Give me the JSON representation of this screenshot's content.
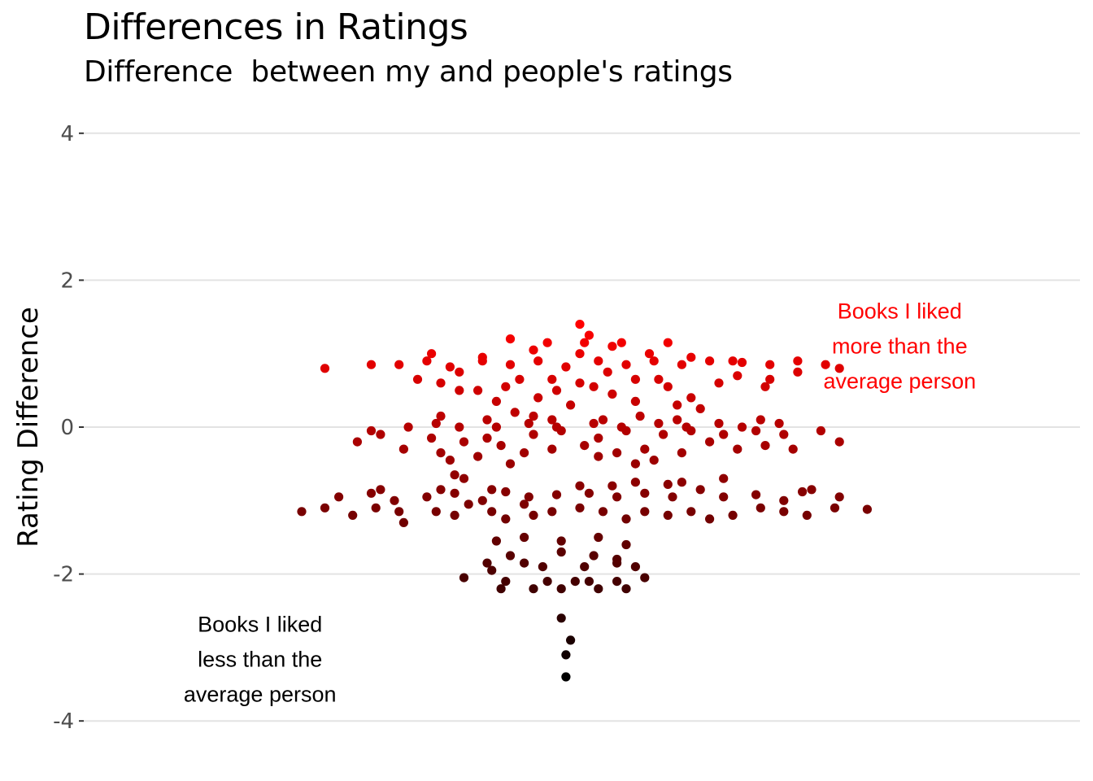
{
  "chart_data": {
    "type": "scatter",
    "title": "Differences in Ratings",
    "subtitle": "Difference  between my and people's ratings",
    "xlabel": "",
    "ylabel": "Rating Difference",
    "ylim": [
      -4.2,
      4.2
    ],
    "yticks": [
      -4,
      -2,
      0,
      2,
      4
    ],
    "ytick_labels": [
      "-4",
      "-2",
      "0",
      "2",
      "4"
    ],
    "xlim": [
      -1,
      1
    ],
    "grid": "horizontal",
    "legend": "none",
    "color_low": "#000000",
    "color_high": "#ff0000",
    "annotations": [
      {
        "lines": [
          "Books I liked",
          "more than the",
          "average person"
        ],
        "x": 0.69,
        "y": 1.1,
        "color": "#ff0000"
      },
      {
        "lines": [
          "Books I liked",
          "less than the",
          "average person"
        ],
        "x": -0.69,
        "y": -3.16,
        "color": "#000000"
      }
    ],
    "points": [
      [
        -0.03,
        -3.4
      ],
      [
        -0.03,
        -3.1
      ],
      [
        -0.02,
        -2.9
      ],
      [
        -0.04,
        -2.6
      ],
      [
        -0.17,
        -2.2
      ],
      [
        -0.1,
        -2.2
      ],
      [
        -0.04,
        -2.2
      ],
      [
        0.04,
        -2.2
      ],
      [
        0.1,
        -2.2
      ],
      [
        -0.16,
        -2.1
      ],
      [
        -0.01,
        -2.1
      ],
      [
        -0.25,
        -2.05
      ],
      [
        -0.07,
        -2.1
      ],
      [
        0.02,
        -2.1
      ],
      [
        0.08,
        -2.1
      ],
      [
        0.14,
        -2.05
      ],
      [
        -0.19,
        -1.95
      ],
      [
        -0.08,
        -1.9
      ],
      [
        0.01,
        -1.9
      ],
      [
        0.08,
        -1.85
      ],
      [
        0.12,
        -1.9
      ],
      [
        -0.12,
        -1.85
      ],
      [
        -0.2,
        -1.85
      ],
      [
        -0.04,
        -1.7
      ],
      [
        0.03,
        -1.75
      ],
      [
        0.08,
        -1.8
      ],
      [
        -0.15,
        -1.75
      ],
      [
        -0.18,
        -1.55
      ],
      [
        -0.12,
        -1.5
      ],
      [
        -0.04,
        -1.55
      ],
      [
        0.04,
        -1.5
      ],
      [
        0.1,
        -1.6
      ],
      [
        -0.39,
        -1.15
      ],
      [
        -0.38,
        -1.3
      ],
      [
        -0.31,
        -1.15
      ],
      [
        -0.27,
        -1.2
      ],
      [
        -0.24,
        -1.05
      ],
      [
        -0.19,
        -1.15
      ],
      [
        -0.16,
        -1.25
      ],
      [
        -0.12,
        -1.05
      ],
      [
        -0.1,
        -1.2
      ],
      [
        -0.06,
        -1.15
      ],
      [
        0.0,
        -1.1
      ],
      [
        0.05,
        -1.15
      ],
      [
        0.1,
        -1.25
      ],
      [
        0.14,
        -1.15
      ],
      [
        0.19,
        -1.2
      ],
      [
        0.24,
        -1.15
      ],
      [
        0.28,
        -1.25
      ],
      [
        0.33,
        -1.2
      ],
      [
        0.39,
        -1.1
      ],
      [
        0.44,
        -1.15
      ],
      [
        0.49,
        -1.2
      ],
      [
        0.55,
        -1.1
      ],
      [
        -0.55,
        -1.1
      ],
      [
        -0.49,
        -1.2
      ],
      [
        -0.44,
        -1.1
      ],
      [
        -0.6,
        -1.15
      ],
      [
        0.62,
        -1.12
      ],
      [
        -0.52,
        -0.95
      ],
      [
        -0.45,
        -0.9
      ],
      [
        -0.4,
        -1.0
      ],
      [
        -0.33,
        -0.95
      ],
      [
        -0.27,
        -0.9
      ],
      [
        -0.21,
        -1.0
      ],
      [
        -0.16,
        -0.88
      ],
      [
        -0.11,
        -0.95
      ],
      [
        -0.05,
        -0.92
      ],
      [
        0.02,
        -0.9
      ],
      [
        0.08,
        -0.95
      ],
      [
        0.14,
        -0.9
      ],
      [
        0.2,
        -0.95
      ],
      [
        0.26,
        -0.85
      ],
      [
        0.31,
        -0.95
      ],
      [
        0.38,
        -0.92
      ],
      [
        0.44,
        -1.0
      ],
      [
        0.5,
        -0.85
      ],
      [
        0.56,
        -0.95
      ],
      [
        0.48,
        -0.88
      ],
      [
        -0.43,
        -0.85
      ],
      [
        -0.3,
        -0.85
      ],
      [
        -0.25,
        -0.7
      ],
      [
        -0.19,
        -0.85
      ],
      [
        0.0,
        -0.8
      ],
      [
        0.07,
        -0.8
      ],
      [
        0.12,
        -0.75
      ],
      [
        0.19,
        -0.78
      ],
      [
        0.31,
        -0.7
      ],
      [
        0.22,
        -0.75
      ],
      [
        -0.27,
        -0.65
      ],
      [
        -0.48,
        -0.2
      ],
      [
        -0.43,
        -0.1
      ],
      [
        -0.38,
        -0.3
      ],
      [
        -0.3,
        -0.35
      ],
      [
        -0.22,
        -0.4
      ],
      [
        -0.17,
        -0.25
      ],
      [
        -0.12,
        -0.35
      ],
      [
        -0.06,
        -0.3
      ],
      [
        0.01,
        -0.25
      ],
      [
        0.08,
        -0.35
      ],
      [
        0.14,
        -0.3
      ],
      [
        0.22,
        -0.35
      ],
      [
        0.28,
        -0.2
      ],
      [
        0.34,
        -0.3
      ],
      [
        0.4,
        -0.25
      ],
      [
        0.46,
        -0.3
      ],
      [
        -0.45,
        -0.05
      ],
      [
        -0.32,
        -0.15
      ],
      [
        -0.25,
        -0.2
      ],
      [
        -0.2,
        -0.15
      ],
      [
        -0.1,
        -0.1
      ],
      [
        -0.04,
        -0.05
      ],
      [
        0.04,
        -0.15
      ],
      [
        0.1,
        -0.05
      ],
      [
        0.18,
        -0.1
      ],
      [
        0.24,
        -0.05
      ],
      [
        0.31,
        -0.1
      ],
      [
        0.38,
        -0.05
      ],
      [
        0.44,
        -0.1
      ],
      [
        0.52,
        -0.05
      ],
      [
        0.56,
        -0.2
      ],
      [
        -0.28,
        -0.45
      ],
      [
        0.04,
        -0.4
      ],
      [
        0.16,
        -0.45
      ],
      [
        -0.15,
        -0.5
      ],
      [
        0.12,
        -0.5
      ],
      [
        -0.37,
        0.0
      ],
      [
        -0.31,
        0.05
      ],
      [
        -0.26,
        0.0
      ],
      [
        -0.18,
        0.0
      ],
      [
        -0.11,
        0.05
      ],
      [
        -0.05,
        0.0
      ],
      [
        0.03,
        0.05
      ],
      [
        0.09,
        0.0
      ],
      [
        0.17,
        0.05
      ],
      [
        0.23,
        0.0
      ],
      [
        0.3,
        0.05
      ],
      [
        0.35,
        0.0
      ],
      [
        0.43,
        0.05
      ],
      [
        -0.3,
        0.15
      ],
      [
        -0.2,
        0.1
      ],
      [
        -0.14,
        0.2
      ],
      [
        -0.06,
        0.1
      ],
      [
        0.05,
        0.1
      ],
      [
        0.13,
        0.15
      ],
      [
        0.21,
        0.1
      ],
      [
        0.26,
        0.25
      ],
      [
        0.39,
        0.1
      ],
      [
        -0.18,
        0.35
      ],
      [
        -0.1,
        0.15
      ],
      [
        -0.35,
        0.65
      ],
      [
        -0.3,
        0.6
      ],
      [
        -0.26,
        0.75
      ],
      [
        -0.22,
        0.5
      ],
      [
        -0.16,
        0.55
      ],
      [
        -0.13,
        0.65
      ],
      [
        -0.06,
        0.65
      ],
      [
        0.0,
        0.6
      ],
      [
        0.06,
        0.75
      ],
      [
        0.12,
        0.65
      ],
      [
        0.19,
        0.55
      ],
      [
        0.24,
        0.4
      ],
      [
        0.3,
        0.6
      ],
      [
        0.34,
        0.7
      ],
      [
        0.41,
        0.65
      ],
      [
        0.47,
        0.75
      ],
      [
        -0.45,
        0.85
      ],
      [
        -0.39,
        0.85
      ],
      [
        -0.33,
        0.9
      ],
      [
        -0.28,
        0.82
      ],
      [
        -0.21,
        0.9
      ],
      [
        -0.15,
        0.85
      ],
      [
        -0.09,
        0.9
      ],
      [
        -0.03,
        0.82
      ],
      [
        0.04,
        0.9
      ],
      [
        0.1,
        0.85
      ],
      [
        0.16,
        0.9
      ],
      [
        0.22,
        0.85
      ],
      [
        0.28,
        0.9
      ],
      [
        0.35,
        0.88
      ],
      [
        0.41,
        0.85
      ],
      [
        0.47,
        0.9
      ],
      [
        0.53,
        0.85
      ],
      [
        -0.55,
        0.8
      ],
      [
        0.56,
        0.8
      ],
      [
        -0.32,
        1.0
      ],
      [
        -0.21,
        0.95
      ],
      [
        -0.1,
        1.05
      ],
      [
        0.0,
        1.0
      ],
      [
        0.07,
        1.1
      ],
      [
        0.15,
        1.0
      ],
      [
        0.24,
        0.95
      ],
      [
        0.33,
        0.9
      ],
      [
        -0.15,
        1.2
      ],
      [
        -0.07,
        1.15
      ],
      [
        0.01,
        1.15
      ],
      [
        0.09,
        1.15
      ],
      [
        0.19,
        1.15
      ],
      [
        0.0,
        1.4
      ],
      [
        0.02,
        1.25
      ],
      [
        -0.26,
        0.5
      ],
      [
        0.03,
        0.55
      ],
      [
        0.17,
        0.65
      ],
      [
        0.4,
        0.55
      ],
      [
        -0.09,
        0.4
      ],
      [
        0.07,
        0.45
      ],
      [
        -0.02,
        0.3
      ],
      [
        0.12,
        0.35
      ],
      [
        0.21,
        0.3
      ],
      [
        -0.05,
        0.5
      ]
    ]
  }
}
